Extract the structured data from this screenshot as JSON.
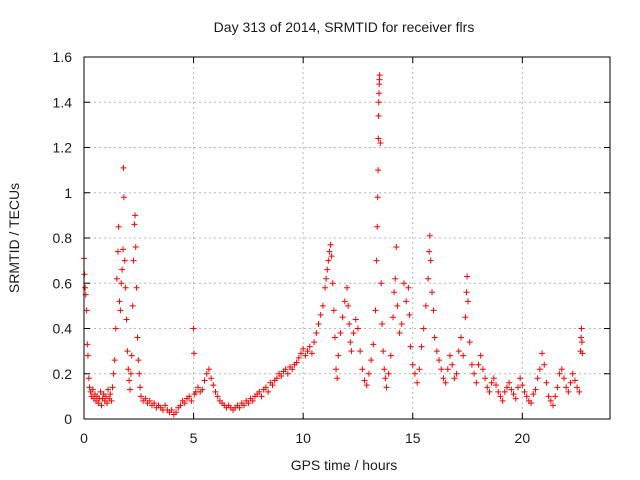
{
  "chart_data": {
    "type": "scatter",
    "title": "Day 313 of 2014, SRMTID for receiver flrs",
    "xlabel": "GPS time / hours",
    "ylabel": "SRMTID / TECUs",
    "xlim": [
      0,
      24
    ],
    "ylim": [
      0,
      1.6
    ],
    "xticks": [
      0,
      5,
      10,
      15,
      20
    ],
    "xtick_labels": [
      "0",
      "5",
      "10",
      "15",
      "20"
    ],
    "yticks": [
      0,
      0.2,
      0.4,
      0.6,
      0.8,
      1.0,
      1.2,
      1.4,
      1.6
    ],
    "ytick_labels": [
      "0",
      "0.2",
      "0.4",
      "0.6",
      "0.8",
      "1",
      "1.2",
      "1.4",
      "1.6"
    ],
    "grid": true,
    "marker": "+",
    "color": "#ff0000",
    "series": [
      {
        "name": "SRMTID",
        "points": [
          [
            0.0,
            0.71
          ],
          [
            0.02,
            0.64
          ],
          [
            0.05,
            0.58
          ],
          [
            0.08,
            0.55
          ],
          [
            0.12,
            0.48
          ],
          [
            0.15,
            0.33
          ],
          [
            0.18,
            0.28
          ],
          [
            0.22,
            0.18
          ],
          [
            0.25,
            0.14
          ],
          [
            0.3,
            0.12
          ],
          [
            0.35,
            0.1
          ],
          [
            0.4,
            0.13
          ],
          [
            0.45,
            0.09
          ],
          [
            0.5,
            0.11
          ],
          [
            0.55,
            0.08
          ],
          [
            0.6,
            0.1
          ],
          [
            0.65,
            0.07
          ],
          [
            0.7,
            0.09
          ],
          [
            0.75,
            0.12
          ],
          [
            0.8,
            0.06
          ],
          [
            0.85,
            0.09
          ],
          [
            0.9,
            0.11
          ],
          [
            0.95,
            0.08
          ],
          [
            1.0,
            0.1
          ],
          [
            1.05,
            0.07
          ],
          [
            1.1,
            0.13
          ],
          [
            1.15,
            0.09
          ],
          [
            1.2,
            0.11
          ],
          [
            1.25,
            0.08
          ],
          [
            1.3,
            0.14
          ],
          [
            1.35,
            0.2
          ],
          [
            1.4,
            0.26
          ],
          [
            1.45,
            0.4
          ],
          [
            1.5,
            0.62
          ],
          [
            1.55,
            0.74
          ],
          [
            1.58,
            0.85
          ],
          [
            1.62,
            0.52
          ],
          [
            1.66,
            0.48
          ],
          [
            1.7,
            0.6
          ],
          [
            1.74,
            0.66
          ],
          [
            1.78,
            0.75
          ],
          [
            1.8,
            1.11
          ],
          [
            1.82,
            0.98
          ],
          [
            1.86,
            0.7
          ],
          [
            1.9,
            0.58
          ],
          [
            1.94,
            0.44
          ],
          [
            1.98,
            0.3
          ],
          [
            2.02,
            0.22
          ],
          [
            2.06,
            0.17
          ],
          [
            2.1,
            0.13
          ],
          [
            2.14,
            0.2
          ],
          [
            2.18,
            0.28
          ],
          [
            2.22,
            0.5
          ],
          [
            2.26,
            0.7
          ],
          [
            2.3,
            0.86
          ],
          [
            2.33,
            0.9
          ],
          [
            2.36,
            0.76
          ],
          [
            2.4,
            0.58
          ],
          [
            2.44,
            0.36
          ],
          [
            2.48,
            0.26
          ],
          [
            2.52,
            0.2
          ],
          [
            2.56,
            0.14
          ],
          [
            2.6,
            0.1
          ],
          [
            2.7,
            0.08
          ],
          [
            2.8,
            0.09
          ],
          [
            2.9,
            0.07
          ],
          [
            3.0,
            0.08
          ],
          [
            3.1,
            0.06
          ],
          [
            3.2,
            0.07
          ],
          [
            3.3,
            0.05
          ],
          [
            3.4,
            0.06
          ],
          [
            3.5,
            0.05
          ],
          [
            3.6,
            0.04
          ],
          [
            3.7,
            0.06
          ],
          [
            3.8,
            0.04
          ],
          [
            3.9,
            0.03
          ],
          [
            4.0,
            0.04
          ],
          [
            4.1,
            0.02
          ],
          [
            4.2,
            0.03
          ],
          [
            4.3,
            0.05
          ],
          [
            4.4,
            0.06
          ],
          [
            4.5,
            0.08
          ],
          [
            4.6,
            0.07
          ],
          [
            4.7,
            0.09
          ],
          [
            4.8,
            0.1
          ],
          [
            4.9,
            0.08
          ],
          [
            5.0,
            0.4
          ],
          [
            5.02,
            0.29
          ],
          [
            5.05,
            0.11
          ],
          [
            5.1,
            0.12
          ],
          [
            5.2,
            0.14
          ],
          [
            5.3,
            0.12
          ],
          [
            5.4,
            0.13
          ],
          [
            5.5,
            0.17
          ],
          [
            5.6,
            0.2
          ],
          [
            5.7,
            0.22
          ],
          [
            5.8,
            0.18
          ],
          [
            5.9,
            0.15
          ],
          [
            6.0,
            0.12
          ],
          [
            6.1,
            0.1
          ],
          [
            6.2,
            0.08
          ],
          [
            6.3,
            0.07
          ],
          [
            6.4,
            0.06
          ],
          [
            6.5,
            0.05
          ],
          [
            6.6,
            0.06
          ],
          [
            6.7,
            0.05
          ],
          [
            6.8,
            0.04
          ],
          [
            6.9,
            0.05
          ],
          [
            7.0,
            0.06
          ],
          [
            7.1,
            0.05
          ],
          [
            7.2,
            0.07
          ],
          [
            7.3,
            0.06
          ],
          [
            7.4,
            0.08
          ],
          [
            7.5,
            0.07
          ],
          [
            7.6,
            0.09
          ],
          [
            7.7,
            0.08
          ],
          [
            7.8,
            0.1
          ],
          [
            7.9,
            0.11
          ],
          [
            8.0,
            0.12
          ],
          [
            8.1,
            0.1
          ],
          [
            8.2,
            0.13
          ],
          [
            8.3,
            0.14
          ],
          [
            8.4,
            0.12
          ],
          [
            8.5,
            0.16
          ],
          [
            8.6,
            0.15
          ],
          [
            8.7,
            0.17
          ],
          [
            8.8,
            0.18
          ],
          [
            8.9,
            0.2
          ],
          [
            9.0,
            0.19
          ],
          [
            9.1,
            0.21
          ],
          [
            9.2,
            0.22
          ],
          [
            9.3,
            0.2
          ],
          [
            9.4,
            0.23
          ],
          [
            9.5,
            0.22
          ],
          [
            9.6,
            0.24
          ],
          [
            9.7,
            0.25
          ],
          [
            9.8,
            0.27
          ],
          [
            9.9,
            0.29
          ],
          [
            10.0,
            0.31
          ],
          [
            10.1,
            0.28
          ],
          [
            10.2,
            0.3
          ],
          [
            10.3,
            0.32
          ],
          [
            10.4,
            0.29
          ],
          [
            10.5,
            0.34
          ],
          [
            10.6,
            0.38
          ],
          [
            10.7,
            0.42
          ],
          [
            10.8,
            0.46
          ],
          [
            10.9,
            0.5
          ],
          [
            11.0,
            0.58
          ],
          [
            11.05,
            0.62
          ],
          [
            11.1,
            0.66
          ],
          [
            11.15,
            0.7
          ],
          [
            11.2,
            0.74
          ],
          [
            11.25,
            0.77
          ],
          [
            11.3,
            0.72
          ],
          [
            11.35,
            0.6
          ],
          [
            11.4,
            0.48
          ],
          [
            11.45,
            0.36
          ],
          [
            11.5,
            0.22
          ],
          [
            11.55,
            0.18
          ],
          [
            11.6,
            0.28
          ],
          [
            11.7,
            0.38
          ],
          [
            11.8,
            0.45
          ],
          [
            11.9,
            0.52
          ],
          [
            12.0,
            0.58
          ],
          [
            12.05,
            0.5
          ],
          [
            12.1,
            0.42
          ],
          [
            12.15,
            0.34
          ],
          [
            12.2,
            0.3
          ],
          [
            12.3,
            0.38
          ],
          [
            12.4,
            0.44
          ],
          [
            12.5,
            0.4
          ],
          [
            12.6,
            0.3
          ],
          [
            12.7,
            0.22
          ],
          [
            12.8,
            0.17
          ],
          [
            12.9,
            0.15
          ],
          [
            13.0,
            0.2
          ],
          [
            13.1,
            0.26
          ],
          [
            13.2,
            0.33
          ],
          [
            13.3,
            0.48
          ],
          [
            13.35,
            0.7
          ],
          [
            13.38,
            0.85
          ],
          [
            13.4,
            0.98
          ],
          [
            13.42,
            1.1
          ],
          [
            13.43,
            1.24
          ],
          [
            13.44,
            1.34
          ],
          [
            13.45,
            1.4
          ],
          [
            13.46,
            1.44
          ],
          [
            13.47,
            1.48
          ],
          [
            13.48,
            1.5
          ],
          [
            13.49,
            1.52
          ],
          [
            13.52,
            1.22
          ],
          [
            13.56,
            0.6
          ],
          [
            13.6,
            0.42
          ],
          [
            13.65,
            0.3
          ],
          [
            13.7,
            0.22
          ],
          [
            13.75,
            0.18
          ],
          [
            13.8,
            0.14
          ],
          [
            13.9,
            0.2
          ],
          [
            14.0,
            0.28
          ],
          [
            14.1,
            0.45
          ],
          [
            14.15,
            0.56
          ],
          [
            14.2,
            0.62
          ],
          [
            14.25,
            0.76
          ],
          [
            14.3,
            0.5
          ],
          [
            14.4,
            0.38
          ],
          [
            14.5,
            0.42
          ],
          [
            14.6,
            0.6
          ],
          [
            14.7,
            0.52
          ],
          [
            14.8,
            0.58
          ],
          [
            14.85,
            0.46
          ],
          [
            14.9,
            0.32
          ],
          [
            15.0,
            0.24
          ],
          [
            15.1,
            0.2
          ],
          [
            15.2,
            0.16
          ],
          [
            15.3,
            0.22
          ],
          [
            15.4,
            0.32
          ],
          [
            15.5,
            0.4
          ],
          [
            15.6,
            0.5
          ],
          [
            15.7,
            0.62
          ],
          [
            15.75,
            0.74
          ],
          [
            15.78,
            0.81
          ],
          [
            15.82,
            0.7
          ],
          [
            15.88,
            0.56
          ],
          [
            15.95,
            0.48
          ],
          [
            16.0,
            0.36
          ],
          [
            16.1,
            0.3
          ],
          [
            16.2,
            0.26
          ],
          [
            16.3,
            0.22
          ],
          [
            16.4,
            0.18
          ],
          [
            16.5,
            0.16
          ],
          [
            16.6,
            0.22
          ],
          [
            16.7,
            0.28
          ],
          [
            16.8,
            0.24
          ],
          [
            16.9,
            0.18
          ],
          [
            17.0,
            0.2
          ],
          [
            17.1,
            0.3
          ],
          [
            17.2,
            0.36
          ],
          [
            17.3,
            0.28
          ],
          [
            17.4,
            0.45
          ],
          [
            17.45,
            0.56
          ],
          [
            17.48,
            0.63
          ],
          [
            17.52,
            0.52
          ],
          [
            17.6,
            0.34
          ],
          [
            17.7,
            0.24
          ],
          [
            17.8,
            0.2
          ],
          [
            17.9,
            0.16
          ],
          [
            18.0,
            0.24
          ],
          [
            18.1,
            0.28
          ],
          [
            18.2,
            0.22
          ],
          [
            18.3,
            0.18
          ],
          [
            18.4,
            0.14
          ],
          [
            18.5,
            0.12
          ],
          [
            18.6,
            0.16
          ],
          [
            18.7,
            0.18
          ],
          [
            18.8,
            0.15
          ],
          [
            18.9,
            0.12
          ],
          [
            19.0,
            0.1
          ],
          [
            19.1,
            0.08
          ],
          [
            19.2,
            0.12
          ],
          [
            19.3,
            0.14
          ],
          [
            19.4,
            0.16
          ],
          [
            19.5,
            0.13
          ],
          [
            19.6,
            0.11
          ],
          [
            19.7,
            0.09
          ],
          [
            19.8,
            0.14
          ],
          [
            19.9,
            0.18
          ],
          [
            20.0,
            0.15
          ],
          [
            20.1,
            0.12
          ],
          [
            20.2,
            0.1
          ],
          [
            20.3,
            0.08
          ],
          [
            20.4,
            0.07
          ],
          [
            20.5,
            0.11
          ],
          [
            20.6,
            0.13
          ],
          [
            20.7,
            0.18
          ],
          [
            20.8,
            0.22
          ],
          [
            20.9,
            0.29
          ],
          [
            21.0,
            0.24
          ],
          [
            21.1,
            0.16
          ],
          [
            21.2,
            0.1
          ],
          [
            21.3,
            0.08
          ],
          [
            21.4,
            0.06
          ],
          [
            21.5,
            0.1
          ],
          [
            21.6,
            0.14
          ],
          [
            21.7,
            0.2
          ],
          [
            21.8,
            0.22
          ],
          [
            21.9,
            0.18
          ],
          [
            22.0,
            0.14
          ],
          [
            22.1,
            0.12
          ],
          [
            22.2,
            0.16
          ],
          [
            22.3,
            0.2
          ],
          [
            22.4,
            0.17
          ],
          [
            22.5,
            0.14
          ],
          [
            22.6,
            0.12
          ],
          [
            22.65,
            0.3
          ],
          [
            22.68,
            0.36
          ],
          [
            22.7,
            0.4
          ],
          [
            22.72,
            0.34
          ],
          [
            22.74,
            0.29
          ]
        ]
      }
    ]
  }
}
